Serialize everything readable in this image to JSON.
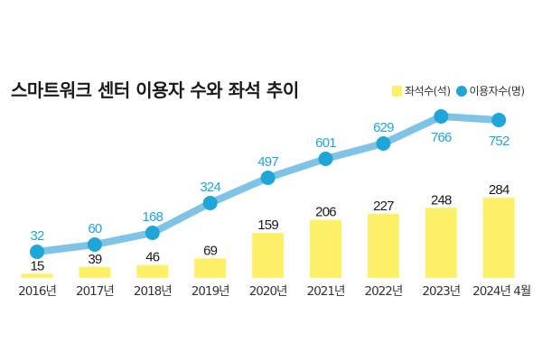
{
  "chart_data": {
    "type": "bar+line",
    "title": "스마트워크 센터 이용자 수와 좌석 추이",
    "categories": [
      "2016년",
      "2017년",
      "2018년",
      "2019년",
      "2020년",
      "2021년",
      "2022년",
      "2023년",
      "2024년 4월"
    ],
    "series": [
      {
        "name": "좌석수(석)",
        "type": "bar",
        "color": "#fff06a",
        "values": [
          15,
          39,
          46,
          69,
          159,
          206,
          227,
          248,
          284
        ]
      },
      {
        "name": "이용자수(명)",
        "type": "line",
        "color": "#1fa6d9",
        "line_color": "#7fc3e6",
        "values": [
          32,
          60,
          168,
          324,
          497,
          601,
          629,
          766,
          752
        ]
      }
    ],
    "xlabel": "",
    "ylabel": "",
    "grid": false,
    "legend_position": "top-right"
  }
}
